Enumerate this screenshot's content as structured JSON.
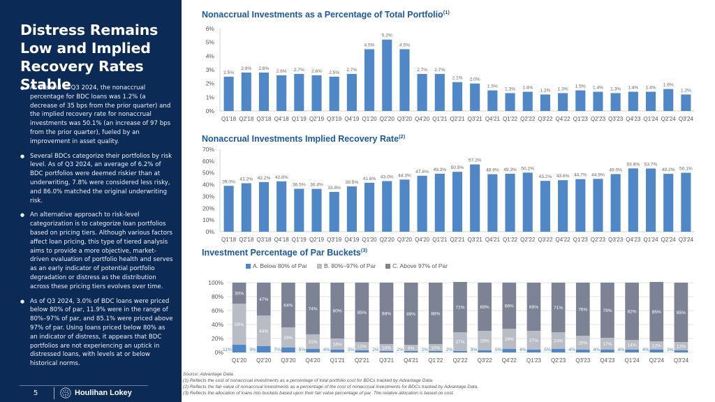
{
  "sidebar": {
    "title": "Distress Remains Low and Implied Recovery Rates Stable",
    "bullets": [
      "At the end of Q3 2024, the nonaccrual percentage for BDC loans was 1.2% (a decrease of 35 bps from the prior quarter) and the implied recovery rate for nonaccrual investments was 50.1% (an increase of 97 bps from the prior quarter), fueled by an improvement in asset quality.",
      "Several BDCs categorize their portfolios by risk level. As of Q3 2024, an average of 6.2% of BDC portfolios were deemed riskier than at underwriting, 7.8% were considered less risky, and 86.0% matched the original underwriting risk.",
      "An alternative approach to risk-level categorization is to categorize loan portfolios based on pricing tiers. Although various factors affect loan pricing, this type of tiered analysis aims to provide a more objective, market-driven evaluation of portfolio health and serves as an early indicator of potential portfolio degradation or distress as the distribution across these pricing tiers evolves over time.",
      "As of Q3 2024, 3.0% of BDC loans were priced below 80% of par, 11.9% were in the range of 80%–97% of par, and 85.1% were priced above 97% of par. Using loans priced below 80% as an indicator of distress, it appears that BDC portfolios are not experiencing an uptick in distressed loans, with levels at or below historical norms."
    ],
    "page_number": "5",
    "brand": "Houlihan Lokey",
    "logo_icon": "globe-icon"
  },
  "colors": {
    "sidebar_bg": "#0b2a55",
    "title_blue": "#1b5aa0",
    "bar_blue": "#4f87c7",
    "gray_light": "#b9bcc4",
    "gray_dark": "#7d8394"
  },
  "footnotes": {
    "source": "Source: Advantage Data.",
    "notes": [
      "(1)  Reflects the cost of nonaccrual investments as a percentage of total portfolio cost for BDCs tracked by Advantage Data.",
      "(2)  Reflects the fair value of nonaccrual investments as a percentage of the cost of nonaccrual investments for BDCs tracked by Advantage Data.",
      "(3)  Reflects the allocation of loans into buckets based upon their fair value percentage of par. The relative allocation is based on cost."
    ]
  },
  "chart_data": [
    {
      "type": "bar",
      "title": "Nonaccrual Investments as a Percentage of Total Portfolio",
      "title_note": "(1)",
      "xlabel": "",
      "ylabel": "",
      "ylim": [
        0,
        6
      ],
      "yticks": [
        "0%",
        "1%",
        "2%",
        "3%",
        "4%",
        "5%",
        "6%"
      ],
      "grid": false,
      "categories": [
        "Q1'18",
        "Q2'18",
        "Q3'18",
        "Q4'18",
        "Q1'19",
        "Q2'19",
        "Q3'19",
        "Q4'19",
        "Q1'20",
        "Q2'20",
        "Q3'20",
        "Q4'20",
        "Q1'21",
        "Q2'21",
        "Q3'21",
        "Q4'21",
        "Q1'22",
        "Q2'22",
        "Q3'22",
        "Q4'22",
        "Q1'23",
        "Q2'23",
        "Q3'23",
        "Q4'23",
        "Q1'24",
        "Q2'24",
        "Q3'24"
      ],
      "values": [
        2.5,
        2.8,
        2.8,
        2.6,
        2.7,
        2.6,
        2.5,
        2.7,
        4.5,
        5.2,
        4.5,
        2.7,
        2.7,
        2.1,
        2.0,
        1.5,
        1.3,
        1.4,
        1.2,
        1.3,
        1.5,
        1.4,
        1.3,
        1.4,
        1.4,
        1.6,
        1.2
      ],
      "labels": [
        "2.5%",
        "2.8%",
        "2.8%",
        "2.6%",
        "2.7%",
        "2.6%",
        "2.5%",
        "2.7%",
        "4.5%",
        "5.2%",
        "4.5%",
        "2.7%",
        "2.7%",
        "2.1%",
        "2.0%",
        "1.5%",
        "1.3%",
        "1.4%",
        "1.2%",
        "1.3%",
        "1.5%",
        "1.4%",
        "1.3%",
        "1.4%",
        "1.4%",
        "1.6%",
        "1.2%"
      ]
    },
    {
      "type": "bar",
      "title": "Nonaccrual Investments Implied Recovery Rate",
      "title_note": "(2)",
      "xlabel": "",
      "ylabel": "",
      "ylim": [
        0,
        70
      ],
      "yticks": [
        "0%",
        "10%",
        "20%",
        "30%",
        "40%",
        "50%",
        "60%",
        "70%"
      ],
      "grid": false,
      "categories": [
        "Q1'18",
        "Q2'18",
        "Q3'18",
        "Q4'18",
        "Q1'19",
        "Q2'19",
        "Q3'19",
        "Q4'19",
        "Q1'20",
        "Q2'20",
        "Q3'20",
        "Q4'20",
        "Q1'21",
        "Q2'21",
        "Q3'21",
        "Q4'21",
        "Q1'22",
        "Q2'22",
        "Q3'22",
        "Q4'22",
        "Q1'23",
        "Q2'23",
        "Q3'23",
        "Q4'23",
        "Q1'24",
        "Q2'24",
        "Q3'24"
      ],
      "values": [
        39.0,
        41.2,
        42.2,
        42.8,
        36.5,
        36.4,
        33.8,
        38.5,
        41.6,
        43.0,
        44.3,
        47.6,
        49.3,
        50.9,
        57.2,
        48.9,
        49.3,
        50.2,
        43.2,
        43.8,
        44.7,
        44.9,
        49.0,
        53.8,
        53.7,
        49.2,
        50.1
      ],
      "labels": [
        "39.0%",
        "41.2%",
        "42.2%",
        "42.8%",
        "36.5%",
        "36.4%",
        "33.8%",
        "38.5%",
        "41.6%",
        "43.0%",
        "44.3%",
        "47.6%",
        "49.3%",
        "50.9%",
        "57.2%",
        "48.9%",
        "49.3%",
        "50.2%",
        "43.2%",
        "43.8%",
        "44.7%",
        "44.9%",
        "49.0%",
        "53.8%",
        "53.7%",
        "49.2%",
        "50.1%"
      ]
    },
    {
      "type": "bar",
      "stacked": true,
      "title": "Investment Percentage of Par Buckets",
      "title_note": "(3)",
      "xlabel": "",
      "ylabel": "",
      "ylim": [
        0,
        100
      ],
      "yticks": [
        "0%",
        "20%",
        "40%",
        "60%",
        "80%",
        "100%"
      ],
      "grid": true,
      "legend": "top-center",
      "categories": [
        "Q1'20",
        "Q2'20",
        "Q3'20",
        "Q4'20",
        "Q1'21",
        "Q2'21",
        "Q3'21",
        "Q4'21",
        "Q1'22",
        "Q2'22",
        "Q3'22",
        "Q4'22",
        "Q1'23",
        "Q2'23",
        "Q3'23",
        "Q4'23",
        "Q1'24",
        "Q2'24",
        "Q3'24"
      ],
      "series": [
        {
          "name": "A. Below 80% of Par",
          "color": "#4f87c7",
          "values": [
            11,
            9,
            7,
            5,
            4,
            3,
            2,
            2,
            2,
            2,
            3,
            5,
            4,
            5,
            4,
            4,
            4,
            4,
            3
          ]
        },
        {
          "name": "B. 80%–97% of Par",
          "color": "#b9bcc4",
          "values": [
            59,
            44,
            29,
            21,
            16,
            12,
            10,
            9,
            10,
            27,
            28,
            29,
            27,
            24,
            20,
            17,
            14,
            12,
            12
          ]
        },
        {
          "name": "C. Above 97% of Par",
          "color": "#7d8394",
          "values": [
            30,
            47,
            64,
            74,
            80,
            85,
            88,
            89,
            88,
            72,
            69,
            66,
            69,
            71,
            76,
            79,
            82,
            85,
            85
          ]
        }
      ]
    }
  ]
}
